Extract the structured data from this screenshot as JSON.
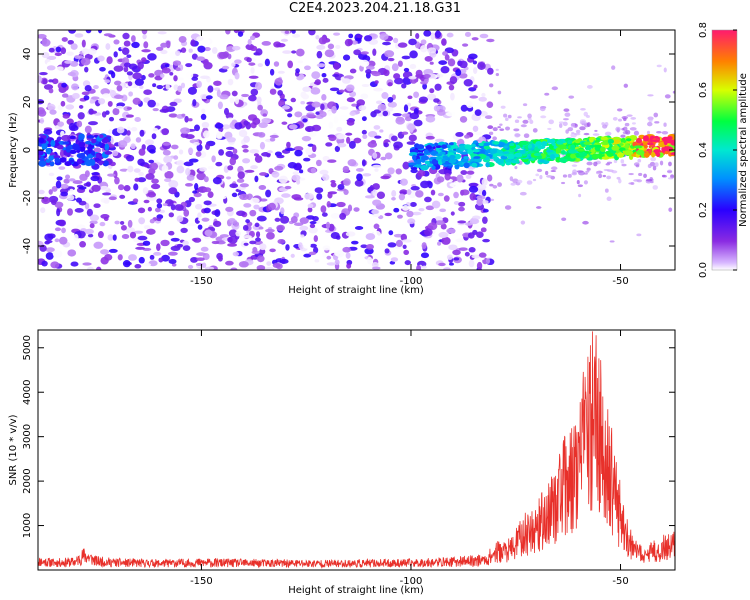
{
  "page": {
    "title": "C2E4.2023.204.21.18.G31"
  },
  "chart_data": [
    {
      "type": "heatmap",
      "xlabel": "Height of straight line (km)",
      "ylabel": "Frequency (Hz)",
      "xlim": [
        -189,
        -37
      ],
      "ylim": [
        -50,
        50
      ],
      "xticks": [
        -150,
        -100,
        -50
      ],
      "yticks": [
        -40,
        -20,
        0,
        20,
        40
      ],
      "grid": false,
      "colorbar": {
        "label": "Normalized spectral amplitude",
        "range": [
          0.0,
          0.8
        ],
        "ticks": [
          "0.0",
          "0.2",
          "0.4",
          "0.6",
          "0.8"
        ],
        "colormap": "rainbow (magenta/violet → blue → cyan → green → yellow → red)"
      },
      "features": [
        {
          "name": "broadband noise",
          "x_range": [
            -189,
            -81
          ],
          "y_range": [
            -50,
            50
          ],
          "amplitude": [
            0.0,
            0.2
          ]
        },
        {
          "name": "signal trace start",
          "x_range": [
            -189,
            -172
          ],
          "y_center": 0,
          "amplitude_max": 0.3
        },
        {
          "name": "signal trace",
          "x_range": [
            -100,
            -37
          ],
          "y_start": -3,
          "y_end": 2,
          "amplitude_max": 0.8
        }
      ]
    },
    {
      "type": "line",
      "xlabel": "Height of straight line (km)",
      "ylabel": "SNR (10 * v/v)",
      "xlim": [
        -189,
        -37
      ],
      "ylim": [
        0,
        5400
      ],
      "xticks": [
        -150,
        -100,
        -50
      ],
      "yticks": [
        1000,
        2000,
        3000,
        4000,
        5000
      ],
      "grid": false,
      "color": "#e8302a",
      "x": [
        -189,
        -185,
        -180,
        -178,
        -175,
        -170,
        -160,
        -150,
        -140,
        -130,
        -120,
        -110,
        -100,
        -90,
        -82,
        -80,
        -76,
        -74,
        -72,
        -70,
        -68,
        -66,
        -64,
        -62,
        -60,
        -58,
        -57,
        -56,
        -55,
        -54,
        -53,
        -52,
        -51,
        -50,
        -49,
        -48,
        -47,
        -46,
        -45,
        -44,
        -42,
        -40,
        -38,
        -37
      ],
      "values": [
        300,
        250,
        280,
        500,
        300,
        250,
        230,
        250,
        240,
        230,
        220,
        230,
        240,
        280,
        350,
        600,
        700,
        1100,
        1300,
        1500,
        1800,
        2200,
        2800,
        3000,
        3800,
        4600,
        5100,
        5300,
        4800,
        4200,
        3500,
        3000,
        2300,
        1900,
        1500,
        1000,
        700,
        600,
        550,
        500,
        650,
        750,
        800,
        1000
      ]
    }
  ]
}
